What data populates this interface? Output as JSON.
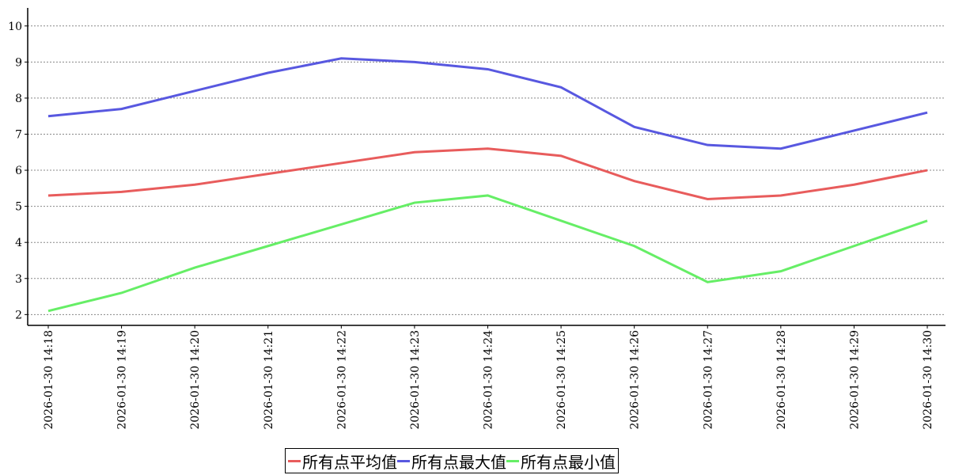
{
  "chart_data": {
    "type": "line",
    "categories": [
      "2026-01-30 14:18",
      "2026-01-30 14:19",
      "2026-01-30 14:20",
      "2026-01-30 14:21",
      "2026-01-30 14:22",
      "2026-01-30 14:23",
      "2026-01-30 14:24",
      "2026-01-30 14:25",
      "2026-01-30 14:26",
      "2026-01-30 14:27",
      "2026-01-30 14:28",
      "2026-01-30 14:29",
      "2026-01-30 14:30"
    ],
    "series": [
      {
        "name": "所有点平均值",
        "color": "#e85c5c",
        "values": [
          5.3,
          5.4,
          5.6,
          5.9,
          6.2,
          6.5,
          6.6,
          6.4,
          5.7,
          5.2,
          5.3,
          5.6,
          6.0
        ]
      },
      {
        "name": "所有点最大值",
        "color": "#5858e0",
        "values": [
          7.5,
          7.7,
          8.2,
          8.7,
          9.1,
          9.0,
          8.8,
          8.3,
          7.2,
          6.7,
          6.6,
          7.1,
          7.6
        ]
      },
      {
        "name": "所有点最小值",
        "color": "#66ee66",
        "values": [
          2.1,
          2.6,
          3.3,
          3.9,
          4.5,
          5.1,
          5.3,
          4.6,
          3.9,
          2.9,
          3.2,
          3.9,
          4.6
        ]
      }
    ],
    "ylim": [
      1.7,
      10.5
    ],
    "yticks": [
      2,
      3,
      4,
      5,
      6,
      7,
      8,
      9,
      10
    ],
    "grid": true
  }
}
